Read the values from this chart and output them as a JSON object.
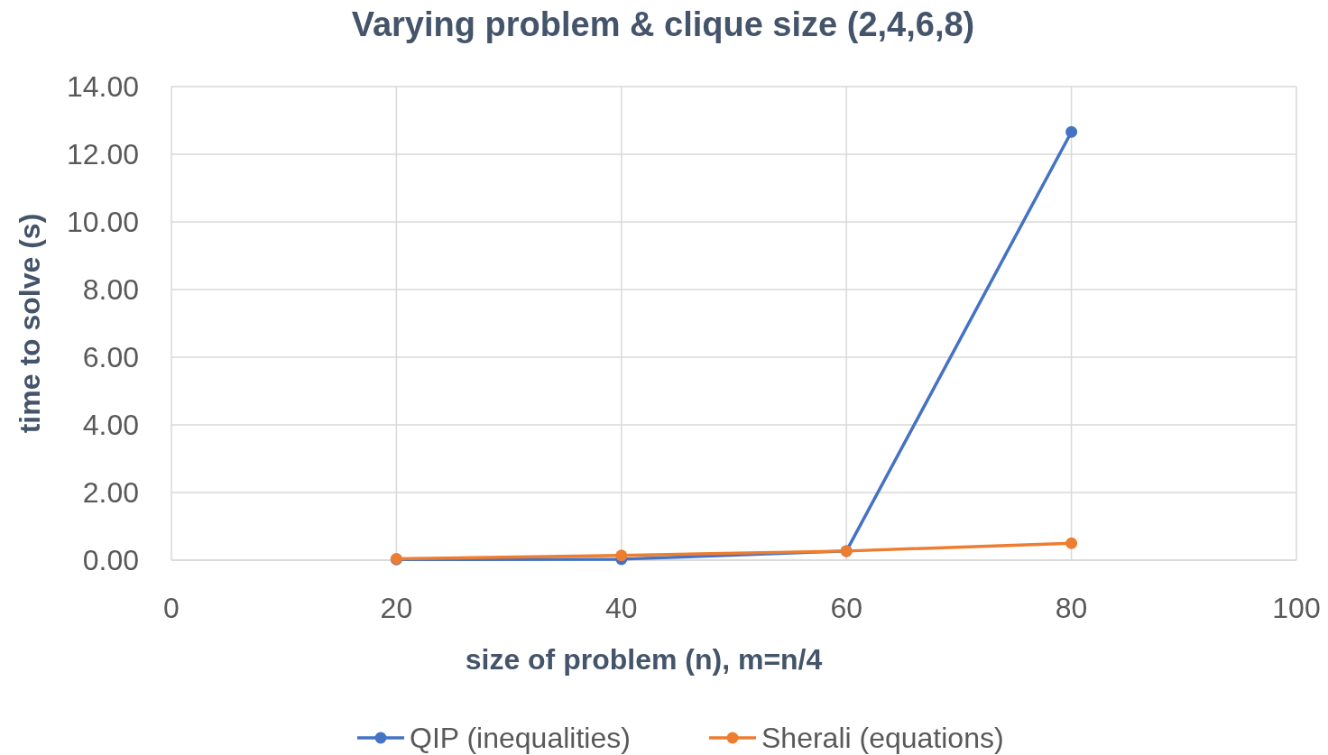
{
  "chart_data": {
    "type": "line",
    "title": "Varying problem & clique size (2,4,6,8)",
    "xlabel": "size of problem (n), m=n/4",
    "ylabel": "time to solve (s)",
    "series": [
      {
        "name": "QIP (inequalities)",
        "color": "#4472c4",
        "x": [
          20,
          40,
          60,
          80
        ],
        "values": [
          0.02,
          0.03,
          0.27,
          12.66
        ]
      },
      {
        "name": "Sherali (equations)",
        "color": "#ed7d31",
        "x": [
          20,
          40,
          60,
          80
        ],
        "values": [
          0.04,
          0.14,
          0.27,
          0.5
        ]
      }
    ],
    "xlim": [
      0,
      100
    ],
    "xticks": [
      0,
      20,
      40,
      60,
      80,
      100
    ],
    "ylim": [
      0,
      14
    ],
    "yticks": [
      {
        "value": 0,
        "label": "0.00"
      },
      {
        "value": 2,
        "label": "2.00"
      },
      {
        "value": 4,
        "label": "4.00"
      },
      {
        "value": 6,
        "label": "6.00"
      },
      {
        "value": 8,
        "label": "8.00"
      },
      {
        "value": 10,
        "label": "10.00"
      },
      {
        "value": 12,
        "label": "12.00"
      },
      {
        "value": 14,
        "label": "14.00"
      }
    ],
    "grid": true,
    "legend": "bottom",
    "marker": "circle",
    "line_style": "solid"
  }
}
